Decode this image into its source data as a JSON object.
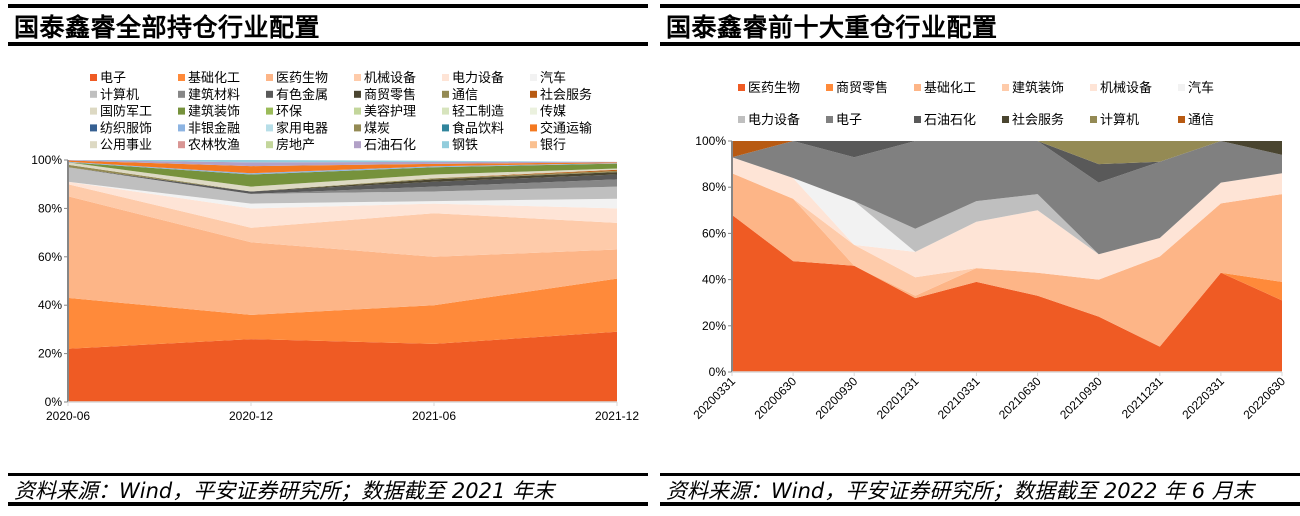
{
  "left_panel": {
    "title": "国泰鑫睿全部持仓行业配置",
    "source": "资料来源：Wind，平安证券研究所；数据截至 2021 年末"
  },
  "right_panel": {
    "title": "国泰鑫睿前十大重仓行业配置",
    "source": "资料来源：Wind，平安证券研究所；数据截至 2022 年 6 月末"
  },
  "chart_data": [
    {
      "type": "area",
      "stacked": true,
      "title": "国泰鑫睿全部持仓行业配置",
      "xlabel": "",
      "ylabel": "",
      "x": [
        "2020-06",
        "2020-12",
        "2021-06",
        "2021-12"
      ],
      "ylim": [
        0,
        100
      ],
      "yticks": [
        "0%",
        "20%",
        "40%",
        "60%",
        "80%",
        "100%"
      ],
      "grid": false,
      "legend": "top",
      "series": [
        {
          "name": "电子",
          "color": "#EF5B24",
          "values": [
            22,
            26,
            24,
            29
          ]
        },
        {
          "name": "基础化工",
          "color": "#FF8A3A",
          "values": [
            21,
            10,
            16,
            22
          ]
        },
        {
          "name": "医药生物",
          "color": "#FDB587",
          "values": [
            42,
            30,
            20,
            12
          ]
        },
        {
          "name": "机械设备",
          "color": "#FECBAA",
          "values": [
            5,
            6,
            18,
            11
          ]
        },
        {
          "name": "电力设备",
          "color": "#FEE4D6",
          "values": [
            1,
            8,
            4,
            6
          ]
        },
        {
          "name": "汽车",
          "color": "#F2F2F2",
          "values": [
            0,
            2,
            1,
            4
          ]
        },
        {
          "name": "计算机",
          "color": "#BFBFBF",
          "values": [
            6,
            4,
            4,
            5
          ]
        },
        {
          "name": "建筑材料",
          "color": "#878787",
          "values": [
            0,
            0,
            2,
            3
          ]
        },
        {
          "name": "有色金属",
          "color": "#595959",
          "values": [
            0,
            1,
            2,
            2
          ]
        },
        {
          "name": "商贸零售",
          "color": "#4A4530",
          "values": [
            0,
            0,
            1,
            1
          ]
        },
        {
          "name": "通信",
          "color": "#948A54",
          "values": [
            1,
            0,
            0.5,
            0.5
          ]
        },
        {
          "name": "社会服务",
          "color": "#B85A12",
          "values": [
            0,
            0,
            0,
            0.5
          ]
        },
        {
          "name": "国防军工",
          "color": "#DDD9C3",
          "values": [
            1,
            2,
            1.5,
            0.5
          ]
        },
        {
          "name": "建筑装饰",
          "color": "#76923C",
          "values": [
            0,
            5,
            3,
            2
          ]
        },
        {
          "name": "环保",
          "color": "#9BBB59",
          "values": [
            0,
            0,
            0,
            0
          ]
        },
        {
          "name": "美容护理",
          "color": "#C3D69B",
          "values": [
            0,
            0,
            0,
            0
          ]
        },
        {
          "name": "轻工制造",
          "color": "#D7E4BD",
          "values": [
            0,
            0,
            0,
            0
          ]
        },
        {
          "name": "传媒",
          "color": "#EBF1DE",
          "values": [
            0,
            0,
            0,
            0
          ]
        },
        {
          "name": "纺织服饰",
          "color": "#366092",
          "values": [
            0,
            0,
            0,
            0
          ]
        },
        {
          "name": "非银金融",
          "color": "#8DB4E2",
          "values": [
            0.3,
            0.5,
            0.4,
            0.2
          ]
        },
        {
          "name": "家用电器",
          "color": "#B7DEE8",
          "values": [
            0,
            0,
            0,
            0
          ]
        },
        {
          "name": "煤炭",
          "color": "#948A54",
          "values": [
            0,
            0,
            0,
            0
          ]
        },
        {
          "name": "食品饮料",
          "color": "#31859C",
          "values": [
            0,
            0,
            0,
            0
          ]
        },
        {
          "name": "交通运输",
          "color": "#F47920",
          "values": [
            0.5,
            3,
            1,
            0.3
          ]
        },
        {
          "name": "公用事业",
          "color": "#DDD9C3",
          "values": [
            0,
            0,
            0,
            0
          ]
        },
        {
          "name": "农林牧渔",
          "color": "#D99694",
          "values": [
            0,
            0,
            0,
            0
          ]
        },
        {
          "name": "房地产",
          "color": "#C3D69B",
          "values": [
            0,
            0,
            0,
            0
          ]
        },
        {
          "name": "石油石化",
          "color": "#B2A1C7",
          "values": [
            0.5,
            1.5,
            0.8,
            0.2
          ]
        },
        {
          "name": "钢铁",
          "color": "#92CDDC",
          "values": [
            0.5,
            1,
            0.5,
            0
          ]
        },
        {
          "name": "银行",
          "color": "#FAC090",
          "values": [
            0,
            0,
            0,
            0
          ]
        }
      ]
    },
    {
      "type": "area",
      "stacked": true,
      "title": "国泰鑫睿前十大重仓行业配置",
      "xlabel": "",
      "ylabel": "",
      "x": [
        "20200331",
        "20200630",
        "20200930",
        "20201231",
        "20210331",
        "20210630",
        "20210930",
        "20211231",
        "20220331",
        "20220630"
      ],
      "ylim": [
        0,
        100
      ],
      "yticks": [
        "0%",
        "20%",
        "40%",
        "60%",
        "80%",
        "100%"
      ],
      "grid": false,
      "legend": "top",
      "series": [
        {
          "name": "医药生物",
          "color": "#EF5B24",
          "values": [
            68,
            48,
            46,
            32,
            39,
            33,
            24,
            11,
            43,
            31
          ]
        },
        {
          "name": "商贸零售",
          "color": "#FF8A3A",
          "values": [
            0,
            0,
            0,
            0,
            0,
            0,
            0,
            0,
            0,
            8
          ]
        },
        {
          "name": "基础化工",
          "color": "#FDB587",
          "values": [
            18,
            27,
            0,
            1,
            6,
            10,
            16,
            39,
            30,
            38
          ]
        },
        {
          "name": "建筑装饰",
          "color": "#FECBAA",
          "values": [
            0,
            0,
            9,
            8,
            0,
            0,
            0,
            0,
            0,
            0
          ]
        },
        {
          "name": "机械设备",
          "color": "#FEE4D6",
          "values": [
            7,
            9,
            0,
            11,
            20,
            27,
            11,
            8,
            9,
            9
          ]
        },
        {
          "name": "汽车",
          "color": "#F2F2F2",
          "values": [
            0,
            0,
            19,
            0,
            0,
            0,
            0,
            0,
            0,
            0
          ]
        },
        {
          "name": "电力设备",
          "color": "#BFBFBF",
          "values": [
            0,
            0,
            0,
            10,
            9,
            7,
            0,
            0,
            0,
            0
          ]
        },
        {
          "name": "电子",
          "color": "#808080",
          "values": [
            0,
            16,
            19,
            38,
            26,
            23,
            31,
            33,
            18,
            8
          ]
        },
        {
          "name": "石油石化",
          "color": "#595959",
          "values": [
            0,
            0,
            7,
            0,
            0,
            0,
            8,
            0,
            0,
            0
          ]
        },
        {
          "name": "社会服务",
          "color": "#4A4530",
          "values": [
            0,
            0,
            0,
            0,
            0,
            0,
            0,
            0,
            0,
            6
          ]
        },
        {
          "name": "计算机",
          "color": "#948A54",
          "values": [
            0,
            0,
            0,
            0,
            0,
            0,
            10,
            9,
            0,
            0
          ]
        },
        {
          "name": "通信",
          "color": "#B85A12",
          "values": [
            7,
            0,
            0,
            0,
            0,
            0,
            0,
            0,
            0,
            0
          ]
        }
      ]
    }
  ]
}
